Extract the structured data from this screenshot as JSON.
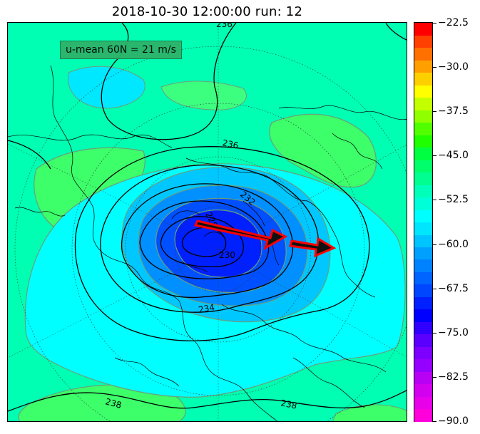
{
  "title": "2018-10-30 12:00:00 run: 12",
  "info_box": {
    "text": "u-mean 60N = 21 m/s"
  },
  "contour_labels": [
    {
      "id": "c236-top",
      "text": "236"
    },
    {
      "id": "c236-mid",
      "text": "236"
    },
    {
      "id": "c232",
      "text": "232"
    },
    {
      "id": "c228",
      "text": "228"
    },
    {
      "id": "c230",
      "text": "230"
    },
    {
      "id": "c234",
      "text": "234"
    },
    {
      "id": "c238-left",
      "text": "238"
    },
    {
      "id": "c238-right",
      "text": "238"
    }
  ],
  "colorbar": {
    "min": -90.0,
    "max": -22.5,
    "step": 2.5,
    "colors": [
      "#ff00dc",
      "#e800ea",
      "#d300f0",
      "#b800f5",
      "#9600ff",
      "#7d00ff",
      "#5a00ff",
      "#3000ff",
      "#0000ff",
      "#0020ff",
      "#0046ff",
      "#0064ff",
      "#0082ff",
      "#00a0ff",
      "#00c4ff",
      "#00e6ff",
      "#00ffff",
      "#00ffd8",
      "#00ffb8",
      "#00ff90",
      "#00ff6a",
      "#00ff40",
      "#20ff00",
      "#50ff00",
      "#90ff00",
      "#c4ff00",
      "#ffff00",
      "#ffd000",
      "#ffa000",
      "#ff7000",
      "#ff4000",
      "#ff0000"
    ],
    "tick_labels": [
      "-22.5",
      "-30.0",
      "-37.5",
      "-45.0",
      "-52.5",
      "-60.0",
      "-67.5",
      "-75.0",
      "-82.5",
      "-90.0"
    ]
  },
  "colors": {
    "background_field": "#00ffb0",
    "arrow_fill": "#111111",
    "arrow_outline": "#ff0000"
  }
}
